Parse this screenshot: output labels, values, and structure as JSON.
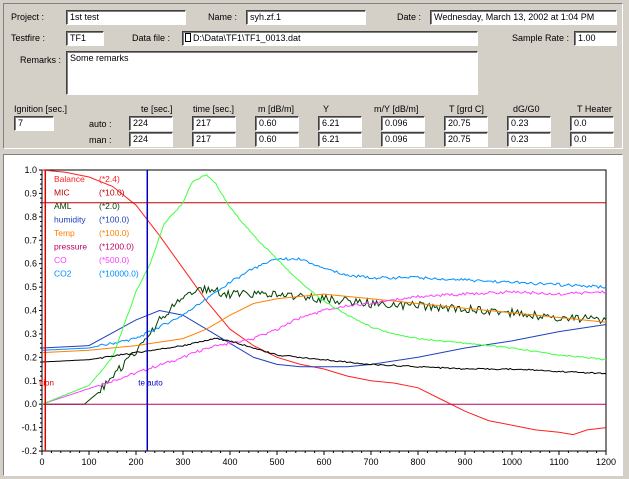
{
  "header": {
    "project_label": "Project :",
    "project_value": "1st test",
    "name_label": "Name :",
    "name_value": "syh.zf.1",
    "date_label": "Date :",
    "date_value": "Wednesday, March 13, 2002 at 1:04 PM",
    "testfire_label": "Testfire :",
    "testfire_value": "TF1",
    "datafile_label": "Data file :",
    "datafile_value": "D:\\Data\\TF1\\TF1_0013.dat",
    "samplerate_label": "Sample Rate :",
    "samplerate_value": "1.00",
    "remarks_label": "Remarks :",
    "remarks_value": "Some remarks"
  },
  "results": {
    "ignition_label": "Ignition [sec.]",
    "ignition_value": "7",
    "row_labels": [
      "auto :",
      "man :"
    ],
    "columns": [
      {
        "header": "te [sec.]",
        "auto": "224",
        "man": "224"
      },
      {
        "header": "time [sec.]",
        "auto": "217",
        "man": "217"
      },
      {
        "header": "m [dB/m]",
        "auto": "0.60",
        "man": "0.60"
      },
      {
        "header": "Y",
        "auto": "6.21",
        "man": "6.21"
      },
      {
        "header": "m/Y [dB/m]",
        "auto": "0.096",
        "man": "0.096"
      },
      {
        "header": "T [grd C]",
        "auto": "20.75",
        "man": "20.75"
      },
      {
        "header": "dG/G0",
        "auto": "0.23",
        "man": "0.23"
      },
      {
        "header": "T Heater",
        "auto": "0.0",
        "man": "0.0"
      }
    ]
  },
  "chart_data": {
    "type": "line",
    "xlim": [
      0,
      1200
    ],
    "ylim": [
      -0.2,
      1.0
    ],
    "x_ticks": [
      "0",
      "100",
      "200",
      "300",
      "400",
      "500",
      "600",
      "700",
      "800",
      "900",
      "1000",
      "1100",
      "1200"
    ],
    "y_ticks": [
      "1.0",
      "0.9",
      "0.8",
      "0.7",
      "0.6",
      "0.5",
      "0.4",
      "0.3",
      "0.2",
      "0.1",
      "0.0",
      "-0.1",
      "-0.2"
    ],
    "markers": [
      {
        "label": "ition",
        "x": 7,
        "color": "#e00000"
      },
      {
        "label": "te auto",
        "x": 224,
        "color": "#0000c0"
      }
    ],
    "series": [
      {
        "name": "Balance",
        "scale": "(*2.4)",
        "color": "#ff2020",
        "points": [
          [
            0,
            1.0
          ],
          [
            50,
            0.99
          ],
          [
            100,
            0.97
          ],
          [
            150,
            0.93
          ],
          [
            200,
            0.85
          ],
          [
            250,
            0.72
          ],
          [
            300,
            0.58
          ],
          [
            350,
            0.44
          ],
          [
            400,
            0.32
          ],
          [
            450,
            0.25
          ],
          [
            500,
            0.2
          ],
          [
            550,
            0.17
          ],
          [
            600,
            0.15
          ],
          [
            650,
            0.12
          ],
          [
            700,
            0.1
          ],
          [
            750,
            0.09
          ],
          [
            800,
            0.07
          ],
          [
            850,
            0.02
          ],
          [
            900,
            -0.03
          ],
          [
            950,
            -0.07
          ],
          [
            1000,
            -0.09
          ],
          [
            1050,
            -0.11
          ],
          [
            1100,
            -0.12
          ],
          [
            1130,
            -0.13
          ],
          [
            1160,
            -0.11
          ],
          [
            1200,
            -0.1
          ]
        ]
      },
      {
        "name": "MIC",
        "scale": "(*10.0)",
        "color": "#c00000",
        "points": [
          [
            0,
            0.86
          ],
          [
            1200,
            0.86
          ]
        ]
      },
      {
        "name": "AML",
        "scale": "(*2.0)",
        "color": "#004000",
        "points": [
          [
            0,
            0.0
          ],
          [
            90,
            0.0
          ],
          [
            120,
            0.05
          ],
          [
            160,
            0.14
          ],
          [
            200,
            0.22
          ],
          [
            250,
            0.36
          ],
          [
            300,
            0.46
          ],
          [
            330,
            0.5
          ],
          [
            350,
            0.49
          ],
          [
            400,
            0.47
          ],
          [
            500,
            0.47
          ],
          [
            550,
            0.46
          ],
          [
            600,
            0.45
          ],
          [
            700,
            0.43
          ],
          [
            800,
            0.42
          ],
          [
            900,
            0.41
          ],
          [
            1000,
            0.39
          ],
          [
            1100,
            0.37
          ],
          [
            1200,
            0.36
          ]
        ]
      },
      {
        "name": "humidity",
        "scale": "(*100.0)",
        "color": "#2040c0",
        "points": [
          [
            0,
            0.24
          ],
          [
            100,
            0.25
          ],
          [
            200,
            0.36
          ],
          [
            250,
            0.4
          ],
          [
            300,
            0.38
          ],
          [
            350,
            0.32
          ],
          [
            400,
            0.26
          ],
          [
            450,
            0.2
          ],
          [
            500,
            0.17
          ],
          [
            550,
            0.16
          ],
          [
            600,
            0.16
          ],
          [
            650,
            0.16
          ],
          [
            700,
            0.17
          ],
          [
            800,
            0.2
          ],
          [
            900,
            0.24
          ],
          [
            1000,
            0.27
          ],
          [
            1100,
            0.31
          ],
          [
            1200,
            0.34
          ]
        ]
      },
      {
        "name": "Temp",
        "scale": "(*100.0)",
        "color": "#ff8000",
        "points": [
          [
            0,
            0.22
          ],
          [
            100,
            0.23
          ],
          [
            200,
            0.25
          ],
          [
            300,
            0.28
          ],
          [
            350,
            0.32
          ],
          [
            400,
            0.38
          ],
          [
            450,
            0.43
          ],
          [
            500,
            0.45
          ],
          [
            550,
            0.46
          ],
          [
            600,
            0.47
          ],
          [
            700,
            0.45
          ],
          [
            800,
            0.43
          ],
          [
            900,
            0.41
          ],
          [
            1000,
            0.39
          ],
          [
            1100,
            0.37
          ],
          [
            1200,
            0.35
          ]
        ]
      },
      {
        "name": "pressure",
        "scale": "(*1200.0)",
        "color": "#c00060",
        "points": [
          [
            0,
            0.0
          ],
          [
            1200,
            0.0
          ]
        ]
      },
      {
        "name": "CO",
        "scale": "(*500.0)",
        "color": "#ff40ff",
        "points": [
          [
            0,
            0.0
          ],
          [
            300,
            0.2
          ],
          [
            350,
            0.24
          ],
          [
            400,
            0.26
          ],
          [
            450,
            0.28
          ],
          [
            500,
            0.32
          ],
          [
            550,
            0.37
          ],
          [
            600,
            0.4
          ],
          [
            650,
            0.42
          ],
          [
            700,
            0.43
          ],
          [
            800,
            0.46
          ],
          [
            900,
            0.47
          ],
          [
            1000,
            0.48
          ],
          [
            1100,
            0.47
          ],
          [
            1200,
            0.48
          ]
        ]
      },
      {
        "name": "CO2",
        "scale": "(*10000.0)",
        "color": "#0090ff",
        "points": [
          [
            0,
            0.23
          ],
          [
            100,
            0.24
          ],
          [
            200,
            0.28
          ],
          [
            300,
            0.38
          ],
          [
            350,
            0.45
          ],
          [
            400,
            0.52
          ],
          [
            450,
            0.58
          ],
          [
            500,
            0.62
          ],
          [
            550,
            0.62
          ],
          [
            600,
            0.58
          ],
          [
            650,
            0.55
          ],
          [
            700,
            0.54
          ],
          [
            800,
            0.54
          ],
          [
            900,
            0.53
          ],
          [
            1000,
            0.52
          ],
          [
            1100,
            0.51
          ],
          [
            1200,
            0.5
          ]
        ]
      },
      {
        "name": "",
        "scale": "",
        "color": "#40ff40",
        "points": [
          [
            0,
            0.0
          ],
          [
            100,
            0.08
          ],
          [
            150,
            0.2
          ],
          [
            200,
            0.48
          ],
          [
            230,
            0.6
          ],
          [
            260,
            0.77
          ],
          [
            300,
            0.86
          ],
          [
            320,
            0.95
          ],
          [
            350,
            0.98
          ],
          [
            370,
            0.94
          ],
          [
            400,
            0.84
          ],
          [
            450,
            0.72
          ],
          [
            500,
            0.62
          ],
          [
            550,
            0.52
          ],
          [
            600,
            0.44
          ],
          [
            650,
            0.38
          ],
          [
            700,
            0.33
          ],
          [
            750,
            0.3
          ],
          [
            800,
            0.28
          ],
          [
            900,
            0.26
          ],
          [
            1000,
            0.24
          ],
          [
            1100,
            0.21
          ],
          [
            1200,
            0.19
          ]
        ]
      },
      {
        "name": "",
        "scale": "",
        "color": "#000000",
        "points": [
          [
            0,
            0.18
          ],
          [
            100,
            0.19
          ],
          [
            200,
            0.22
          ],
          [
            300,
            0.25
          ],
          [
            370,
            0.28
          ],
          [
            400,
            0.27
          ],
          [
            450,
            0.24
          ],
          [
            500,
            0.21
          ],
          [
            600,
            0.19
          ],
          [
            700,
            0.17
          ],
          [
            800,
            0.16
          ],
          [
            900,
            0.15
          ],
          [
            1000,
            0.15
          ],
          [
            1100,
            0.14
          ],
          [
            1200,
            0.13
          ]
        ]
      }
    ]
  }
}
